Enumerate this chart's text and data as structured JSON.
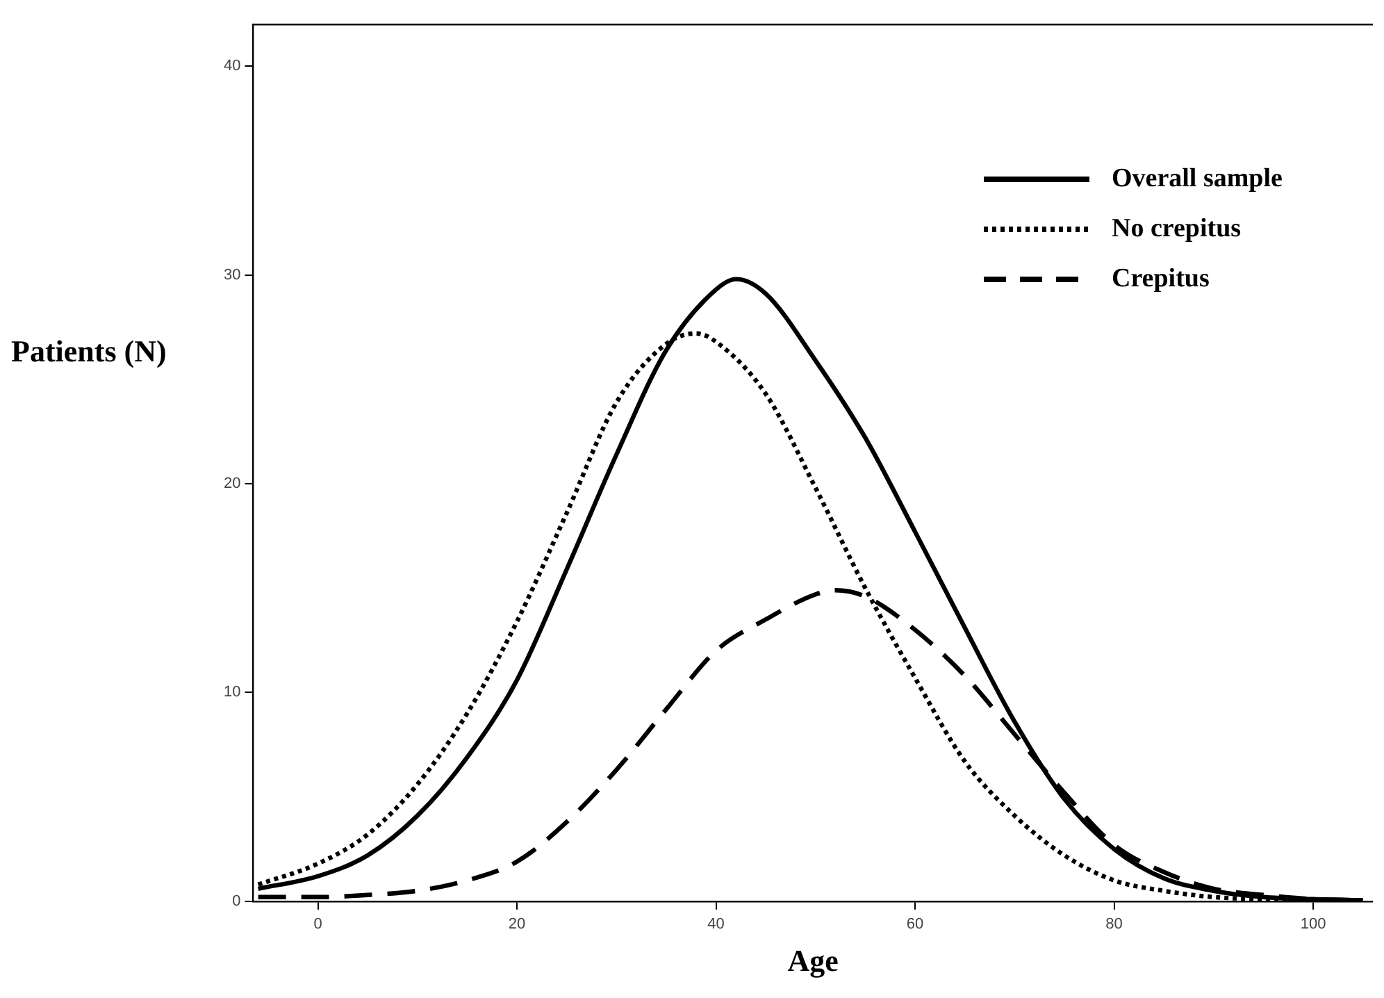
{
  "chart_data": {
    "type": "line",
    "xlabel": "Age",
    "ylabel": "Patients (N)",
    "xlim": [
      -6.5,
      106
    ],
    "ylim": [
      0,
      42
    ],
    "xticks": [
      0,
      20,
      40,
      60,
      80,
      100
    ],
    "yticks": [
      0,
      10,
      20,
      30,
      40
    ],
    "grid": false,
    "legend": "top right",
    "marker": "none",
    "series": [
      {
        "name": "Overall sample",
        "color": "#000000",
        "line_style": "solid",
        "x": [
          -6,
          0,
          5,
          10,
          15,
          20,
          25,
          30,
          35,
          40,
          42,
          45,
          50,
          55,
          60,
          65,
          70,
          75,
          80,
          85,
          90,
          95,
          100,
          105
        ],
        "values": [
          0.6,
          1.2,
          2.2,
          4.1,
          6.9,
          10.6,
          15.9,
          21.4,
          26.4,
          29.3,
          29.8,
          29.1,
          25.9,
          22.2,
          17.7,
          13.1,
          8.6,
          4.9,
          2.5,
          1.1,
          0.5,
          0.2,
          0.1,
          0.05
        ]
      },
      {
        "name": "No crepitus",
        "color": "#000000",
        "line_style": "dotted",
        "x": [
          -6,
          0,
          5,
          10,
          15,
          20,
          25,
          30,
          35,
          38,
          40,
          45,
          50,
          55,
          60,
          65,
          70,
          75,
          80,
          85,
          90,
          95,
          100,
          105
        ],
        "values": [
          0.8,
          1.8,
          3.2,
          5.6,
          9.0,
          13.4,
          18.6,
          23.9,
          26.7,
          27.2,
          26.8,
          24.3,
          19.8,
          15.0,
          10.7,
          6.7,
          4.1,
          2.2,
          1.0,
          0.5,
          0.2,
          0.1,
          0.05,
          0
        ]
      },
      {
        "name": "Crepitus",
        "color": "#000000",
        "line_style": "dashed",
        "x": [
          -6,
          0,
          5,
          10,
          15,
          20,
          25,
          30,
          35,
          40,
          45,
          50,
          52,
          55,
          60,
          65,
          70,
          75,
          80,
          85,
          90,
          95,
          100,
          105
        ],
        "values": [
          0.2,
          0.2,
          0.3,
          0.5,
          1.0,
          1.9,
          3.8,
          6.3,
          9.2,
          12.0,
          13.5,
          14.7,
          14.9,
          14.6,
          13.0,
          10.8,
          8.0,
          5.2,
          2.7,
          1.4,
          0.6,
          0.3,
          0.1,
          0.05
        ]
      }
    ]
  }
}
